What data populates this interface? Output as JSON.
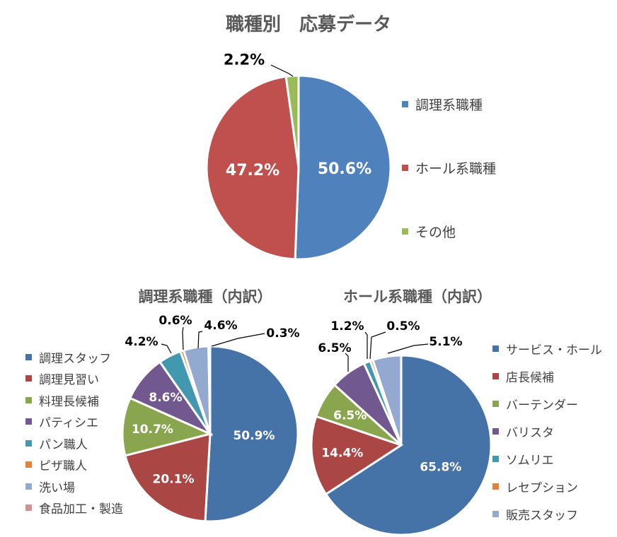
{
  "title": "職種別　応募データ",
  "chart_data": [
    {
      "type": "pie",
      "title": "職種別　応募データ",
      "categories": [
        "調理系職種",
        "ホール系職種",
        "その他"
      ],
      "values": [
        50.6,
        47.2,
        2.2
      ],
      "labels": [
        "50.6%",
        "47.2%",
        "2.2%"
      ],
      "colors": [
        "#4F81BD",
        "#C0504D",
        "#9BBB59"
      ],
      "legend": "right"
    },
    {
      "type": "pie",
      "title": "調理系職種（内訳）",
      "categories": [
        "調理スタッフ",
        "調理見習い",
        "料理長候補",
        "パティシエ",
        "パン職人",
        "ピザ職人",
        "洗い場",
        "食品加工・製造"
      ],
      "values": [
        50.9,
        20.1,
        10.7,
        8.6,
        4.2,
        0.6,
        4.6,
        0.3
      ],
      "labels": [
        "50.9%",
        "20.1%",
        "10.7%",
        "8.6%",
        "4.2%",
        "0.6%",
        "4.6%",
        "0.3%"
      ],
      "colors": [
        "#4572A7",
        "#AA4643",
        "#89A54E",
        "#71588F",
        "#4198AF",
        "#DB843D",
        "#93A9CF",
        "#D19392"
      ],
      "legend": "left"
    },
    {
      "type": "pie",
      "title": "ホール系職種（内訳）",
      "categories": [
        "サービス・ホール",
        "店長候補",
        "バーテンダー",
        "バリスタ",
        "ソムリエ",
        "レセプション",
        "販売スタッフ"
      ],
      "values": [
        65.8,
        14.4,
        6.5,
        6.5,
        1.2,
        0.5,
        5.1
      ],
      "labels": [
        "65.8%",
        "14.4%",
        "6.5%",
        "6.5%",
        "1.2%",
        "0.5%",
        "5.1%"
      ],
      "colors": [
        "#4572A7",
        "#AA4643",
        "#89A54E",
        "#71588F",
        "#4198AF",
        "#DB843D",
        "#93A9CF"
      ],
      "legend": "right"
    }
  ]
}
